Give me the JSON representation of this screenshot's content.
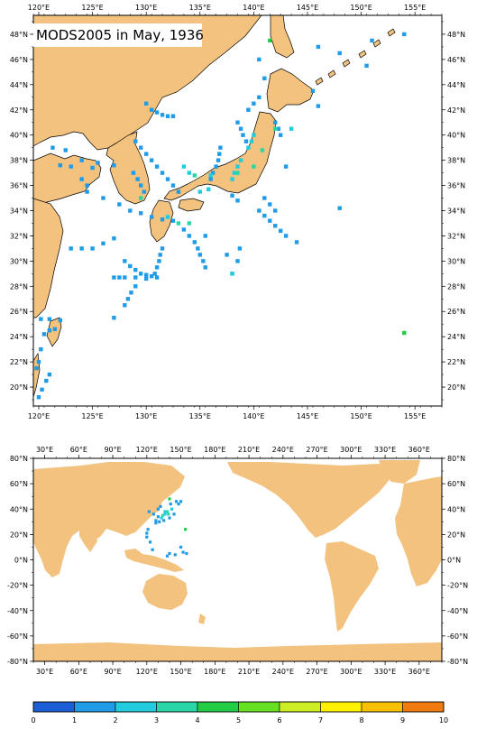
{
  "map_top": {
    "title": "MODS2005 in May, 1936",
    "lon_labels": [
      "120°E",
      "125°E",
      "130°E",
      "135°E",
      "140°E",
      "145°E",
      "150°E",
      "155°E"
    ],
    "lat_labels": [
      "48°N",
      "46°N",
      "44°N",
      "42°N",
      "40°N",
      "38°N",
      "36°N",
      "34°N",
      "32°N",
      "30°N",
      "28°N",
      "26°N",
      "24°N",
      "22°N",
      "20°N"
    ],
    "extent": {
      "lon_min": 119.5,
      "lon_max": 157.5,
      "lat_min": 18.5,
      "lat_max": 49.5
    },
    "land_color": "#f2c27e",
    "ocean_color": "#ffffff"
  },
  "map_bottom": {
    "lon_labels": [
      "30°E",
      "60°E",
      "90°E",
      "120°E",
      "150°E",
      "180°E",
      "210°E",
      "240°E",
      "270°E",
      "300°E",
      "330°E",
      "360°E"
    ],
    "lat_labels": [
      "80°N",
      "60°N",
      "40°N",
      "20°N",
      "0°N",
      "-20°N",
      "-40°N",
      "-60°N",
      "-80°N"
    ],
    "extent": {
      "lon_min": 20,
      "lon_max": 380,
      "lat_min": -80,
      "lat_max": 80
    },
    "land_color": "#f2c27e"
  },
  "colorbar": {
    "labels": [
      "0",
      "1",
      "2",
      "3",
      "4",
      "5",
      "6",
      "7",
      "8",
      "9",
      "10"
    ],
    "colors": [
      "#1a5fd6",
      "#1f9be8",
      "#22ccdd",
      "#2ad6a6",
      "#22cc44",
      "#66e022",
      "#ccee22",
      "#fff000",
      "#f8c000",
      "#f07a10",
      "#e84810"
    ]
  },
  "chart_data": {
    "type": "heatmap",
    "title": "MODS2005 in May, 1936",
    "units_scale": [
      0,
      10
    ],
    "observations_top": [
      {
        "lon": 141.5,
        "lat": 47.5,
        "v": 4.5
      },
      {
        "lon": 146,
        "lat": 47,
        "v": 1.5
      },
      {
        "lon": 148,
        "lat": 46.5,
        "v": 1.2
      },
      {
        "lon": 151,
        "lat": 47.5,
        "v": 1.1
      },
      {
        "lon": 154,
        "lat": 48,
        "v": 1.1
      },
      {
        "lon": 150.5,
        "lat": 45.5,
        "v": 1.1
      },
      {
        "lon": 141,
        "lat": 44.5,
        "v": 1.3
      },
      {
        "lon": 145.5,
        "lat": 43.5,
        "v": 1.1
      },
      {
        "lon": 142,
        "lat": 40.5,
        "v": 3
      },
      {
        "lon": 143.5,
        "lat": 40.5,
        "v": 2.5
      },
      {
        "lon": 138.5,
        "lat": 37,
        "v": 3.2
      },
      {
        "lon": 136,
        "lat": 36.8,
        "v": 2.8
      },
      {
        "lon": 135,
        "lat": 35.5,
        "v": 2.6
      },
      {
        "lon": 134,
        "lat": 33,
        "v": 3
      },
      {
        "lon": 140,
        "lat": 37.5,
        "v": 3.4
      },
      {
        "lon": 138,
        "lat": 29,
        "v": 2.6
      },
      {
        "lon": 154,
        "lat": 24.3,
        "v": 4.6
      },
      {
        "lon": 129.5,
        "lat": 35,
        "v": 3
      },
      {
        "lon": 132,
        "lat": 33.5,
        "v": 2.4
      },
      {
        "lon": 140.8,
        "lat": 38.8,
        "v": 3.5
      }
    ]
  }
}
